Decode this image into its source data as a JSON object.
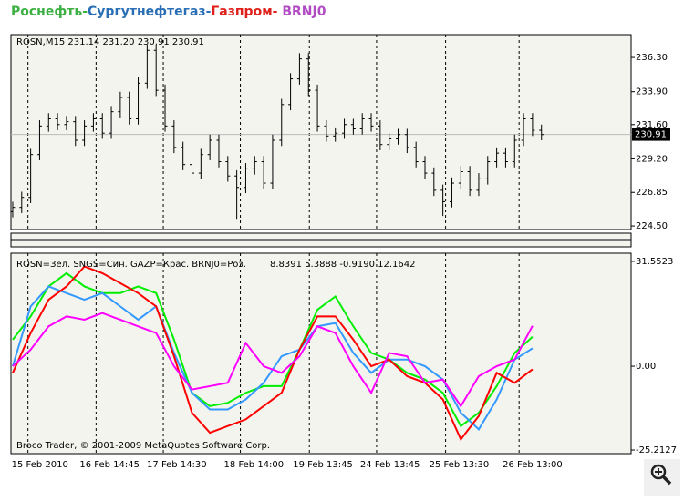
{
  "title_parts": [
    {
      "text": "Роснефть",
      "color": "#3cb043"
    },
    {
      "text": "-",
      "color": "#3cb043"
    },
    {
      "text": "Сургутнефтегаз",
      "color": "#2a6fb5"
    },
    {
      "text": "-",
      "color": "#2a6fb5"
    },
    {
      "text": "Газпром",
      "color": "#e0201b"
    },
    {
      "text": "-",
      "color": "#e0201b"
    },
    {
      "text": " BRNJ0",
      "color": "#b04bc4"
    }
  ],
  "chart_data": [
    {
      "type": "ohlc",
      "title": "ROSN,M15  231.14 231.20 230.91 230.91",
      "color": "#000000",
      "x": [
        0,
        1,
        2,
        3,
        4,
        5,
        6,
        7,
        8,
        9,
        10,
        11,
        12,
        13,
        14,
        15,
        16,
        17,
        18,
        19,
        20,
        21,
        22,
        23,
        24,
        25,
        26,
        27,
        28,
        29,
        30,
        31,
        32,
        33,
        34,
        35,
        36,
        37,
        38,
        39,
        40,
        41,
        42,
        43,
        44,
        45,
        46,
        47,
        48,
        49,
        50,
        51,
        52,
        53,
        54,
        55,
        56,
        57,
        58,
        59
      ],
      "open": [
        225.5,
        225.8,
        226.5,
        229.5,
        231.5,
        232.0,
        231.6,
        231.8,
        230.5,
        231.5,
        232.0,
        231.0,
        232.5,
        233.5,
        232.0,
        234.5,
        236.8,
        234.0,
        231.5,
        230.0,
        228.8,
        228.2,
        229.5,
        230.5,
        229.0,
        228.0,
        227.2,
        228.5,
        229.0,
        227.5,
        230.5,
        233.0,
        234.8,
        236.2,
        234.0,
        231.5,
        230.8,
        231.0,
        231.6,
        231.3,
        232.0,
        231.5,
        230.2,
        230.6,
        230.9,
        230.0,
        229.0,
        228.2,
        227.0,
        226.2,
        227.5,
        228.3,
        227.0,
        227.8,
        229.0,
        229.6,
        229.0,
        230.5,
        232.0,
        231.2
      ],
      "high": [
        226.2,
        226.9,
        229.9,
        231.9,
        232.4,
        232.4,
        232.2,
        232.2,
        231.9,
        232.4,
        232.4,
        232.9,
        233.9,
        233.9,
        234.9,
        237.2,
        237.2,
        234.4,
        231.9,
        230.4,
        229.2,
        229.9,
        230.9,
        230.9,
        229.4,
        228.4,
        228.9,
        229.4,
        229.4,
        230.9,
        233.4,
        235.2,
        236.6,
        236.6,
        234.4,
        231.9,
        231.4,
        232.0,
        232.0,
        232.4,
        232.4,
        231.9,
        231.0,
        231.3,
        231.3,
        230.4,
        229.4,
        228.6,
        227.4,
        227.9,
        228.7,
        228.7,
        228.2,
        229.4,
        230.0,
        230.0,
        230.9,
        232.4,
        232.4,
        231.6
      ],
      "low": [
        225.1,
        225.4,
        226.1,
        229.1,
        231.1,
        231.2,
        231.2,
        230.1,
        230.1,
        231.1,
        230.6,
        230.6,
        232.1,
        231.6,
        231.6,
        234.1,
        233.6,
        231.1,
        229.6,
        228.4,
        227.8,
        227.8,
        229.1,
        228.6,
        227.6,
        225.0,
        226.8,
        228.1,
        227.1,
        227.1,
        230.1,
        232.6,
        234.4,
        233.6,
        231.1,
        230.4,
        230.4,
        230.6,
        230.9,
        230.9,
        231.1,
        229.8,
        229.8,
        230.2,
        229.6,
        228.6,
        227.8,
        226.6,
        225.2,
        225.8,
        227.1,
        226.6,
        226.6,
        227.4,
        228.6,
        228.6,
        228.6,
        230.1,
        230.8,
        230.5
      ],
      "close": [
        225.8,
        226.5,
        229.5,
        231.5,
        232.0,
        231.6,
        231.8,
        230.5,
        231.5,
        232.0,
        231.0,
        232.5,
        233.5,
        232.0,
        234.5,
        236.8,
        234.0,
        231.5,
        230.0,
        228.8,
        228.2,
        229.5,
        230.5,
        229.0,
        228.0,
        227.2,
        228.5,
        229.0,
        227.5,
        230.5,
        233.0,
        234.8,
        236.2,
        234.0,
        231.5,
        230.8,
        231.0,
        231.6,
        231.3,
        232.0,
        231.5,
        230.2,
        230.6,
        230.9,
        230.0,
        229.0,
        228.2,
        227.0,
        226.2,
        227.5,
        228.3,
        227.0,
        227.8,
        229.0,
        229.6,
        229.0,
        230.5,
        232.0,
        231.2,
        230.9
      ],
      "xlim": [
        -0.2,
        69
      ],
      "ylim": [
        224.25,
        237.9
      ],
      "yticks": [
        {
          "value": 236.3,
          "label": "236.30"
        },
        {
          "value": 233.9,
          "label": "233.90"
        },
        {
          "value": 231.6,
          "label": "231.60"
        },
        {
          "value": 229.2,
          "label": "229.20"
        },
        {
          "value": 226.85,
          "label": "226.85"
        },
        {
          "value": 224.5,
          "label": "224.50"
        }
      ],
      "last_price": {
        "value": 230.91,
        "label": "230.91"
      }
    },
    {
      "type": "line",
      "title": "ROSN=Зел. SNGS=Син. GAZP=Крас. BRNJ0=Роз.",
      "subtitle": "8.8391 5.3888 -0.9190 12.1642",
      "footer": "Broco Trader, © 2001-2009 MetaQuotes Software Corp.",
      "x": [
        0,
        2,
        4,
        6,
        8,
        10,
        12,
        14,
        16,
        18,
        20,
        22,
        24,
        26,
        28,
        30,
        32,
        34,
        36,
        38,
        40,
        42,
        44,
        46,
        48,
        50,
        52,
        54,
        56,
        58
      ],
      "series": [
        {
          "name": "ROSN",
          "color": "#00ee00",
          "values": [
            8,
            15,
            24,
            28,
            24,
            22,
            22,
            24,
            22,
            8,
            -8,
            -12,
            -11,
            -8,
            -6,
            -6,
            5,
            17,
            21,
            12,
            4,
            2,
            -2,
            -4,
            -8,
            -18,
            -14,
            -6,
            4,
            8.8391
          ]
        },
        {
          "name": "SNGS",
          "color": "#3399ff",
          "values": [
            0,
            18,
            24,
            22,
            20,
            22,
            18,
            14,
            18,
            4,
            -8,
            -13,
            -13,
            -10,
            -5,
            3,
            5,
            12,
            13,
            4,
            -2,
            2,
            2,
            0,
            -4,
            -14,
            -19,
            -10,
            2,
            5.3888
          ]
        },
        {
          "name": "GAZP",
          "color": "#ff0000",
          "values": [
            -2,
            10,
            20,
            24,
            30,
            28,
            25,
            22,
            18,
            3,
            -14,
            -20,
            -18,
            -16,
            -12,
            -8,
            5,
            15,
            15,
            8,
            0,
            2,
            -3,
            -5,
            -10,
            -22,
            -15,
            -2,
            -5,
            -0.919
          ]
        },
        {
          "name": "BRNJ0",
          "color": "#ff00ff",
          "values": [
            0,
            5,
            12,
            15,
            14,
            16,
            14,
            12,
            10,
            0,
            -7,
            -6,
            -5,
            7,
            0,
            -2,
            3,
            12,
            10,
            0,
            -8,
            4,
            3,
            -5,
            -4,
            -12,
            -3,
            0,
            2,
            12.1642
          ]
        }
      ],
      "xlim": [
        -0.2,
        69
      ],
      "ylim": [
        -26.3,
        34.0
      ],
      "yticks": [
        {
          "value": 31.5523,
          "label": "31.5523"
        },
        {
          "value": 0,
          "label": "0.00"
        },
        {
          "value": -25.2127,
          "label": "-25.2127"
        }
      ],
      "xticks": [
        {
          "value": 1.7,
          "label": "15 Feb 2010"
        },
        {
          "value": 9.3,
          "label": "16 Feb 14:45"
        },
        {
          "value": 16.8,
          "label": "17 Feb 14:30"
        },
        {
          "value": 25.4,
          "label": "18 Feb 14:00"
        },
        {
          "value": 33.1,
          "label": "19 Feb 13:45"
        },
        {
          "value": 40.6,
          "label": "24 Feb 13:45"
        },
        {
          "value": 48.3,
          "label": "25 Feb 13:30"
        },
        {
          "value": 56.5,
          "label": "26 Feb 13:00"
        }
      ]
    }
  ]
}
